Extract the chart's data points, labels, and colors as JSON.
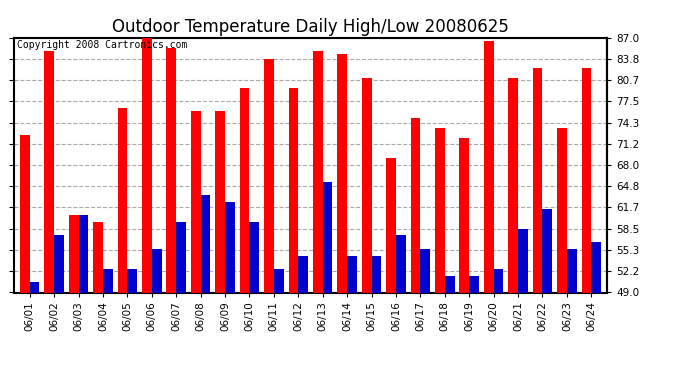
{
  "title": "Outdoor Temperature Daily High/Low 20080625",
  "copyright": "Copyright 2008 Cartronics.com",
  "dates": [
    "06/01",
    "06/02",
    "06/03",
    "06/04",
    "06/05",
    "06/06",
    "06/07",
    "06/08",
    "06/09",
    "06/10",
    "06/11",
    "06/12",
    "06/13",
    "06/14",
    "06/15",
    "06/16",
    "06/17",
    "06/18",
    "06/19",
    "06/20",
    "06/21",
    "06/22",
    "06/23",
    "06/24"
  ],
  "highs": [
    72.5,
    85.0,
    60.5,
    59.5,
    76.5,
    87.0,
    85.5,
    76.0,
    76.0,
    79.5,
    83.8,
    79.5,
    85.0,
    84.5,
    81.0,
    69.0,
    75.0,
    73.5,
    72.0,
    86.5,
    81.0,
    82.5,
    73.5,
    82.5
  ],
  "lows": [
    50.5,
    57.5,
    60.5,
    52.5,
    52.5,
    55.5,
    59.5,
    63.5,
    62.5,
    59.5,
    52.5,
    54.5,
    65.5,
    54.5,
    54.5,
    57.5,
    55.5,
    51.5,
    51.5,
    52.5,
    58.5,
    61.5,
    55.5,
    56.5
  ],
  "high_color": "#ff0000",
  "low_color": "#0000cc",
  "bg_color": "#ffffff",
  "plot_bg_color": "#ffffff",
  "grid_color": "#aaaaaa",
  "ylim_min": 49.0,
  "ylim_max": 87.0,
  "yticks": [
    49.0,
    52.2,
    55.3,
    58.5,
    61.7,
    64.8,
    68.0,
    71.2,
    74.3,
    77.5,
    80.7,
    83.8,
    87.0
  ],
  "bar_width": 0.4,
  "title_fontsize": 12,
  "tick_fontsize": 7.5,
  "copyright_fontsize": 7
}
